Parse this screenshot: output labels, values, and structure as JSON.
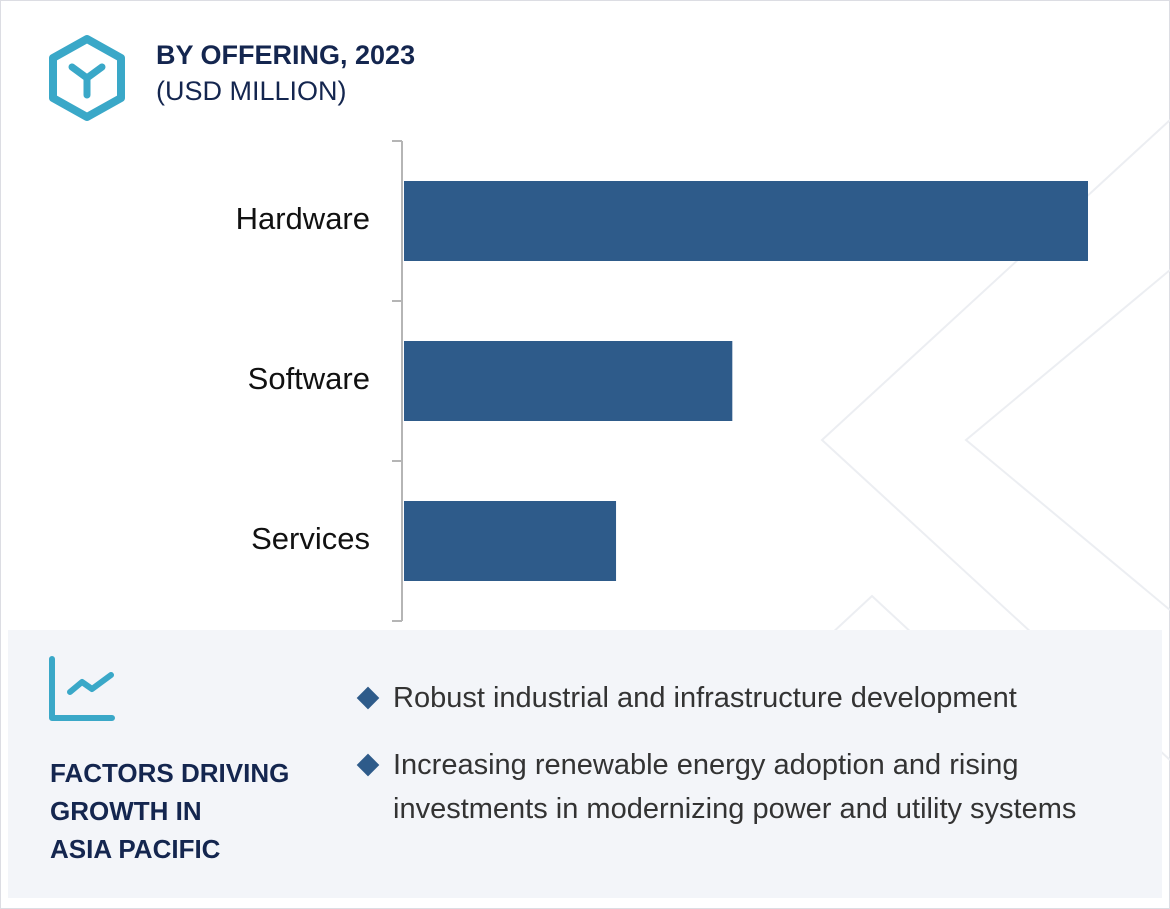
{
  "header": {
    "title": "BY OFFERING, 2023",
    "subtitle": "(USD MILLION)",
    "icon": "hexagon-y-icon"
  },
  "chart_data": {
    "type": "bar",
    "orientation": "horizontal",
    "title": "BY OFFERING, 2023 (USD MILLION)",
    "categories": [
      "Hardware",
      "Software",
      "Services"
    ],
    "values": [
      100,
      48,
      31
    ],
    "value_note": "relative bar lengths; no axis values printed",
    "xlabel": "",
    "ylabel": "",
    "xlim": [
      0,
      100
    ],
    "grid": false,
    "color": "#2e5b8a"
  },
  "factors": {
    "icon": "trend-chart-icon",
    "heading_lines": [
      "FACTORS DRIVING",
      "GROWTH IN",
      "ASIA PACIFIC"
    ],
    "bullets": [
      "Robust industrial and infrastructure development",
      "Increasing renewable energy adoption and rising investments in modernizing power and utility systems"
    ]
  },
  "colors": {
    "accent": "#3aa8c8",
    "bar": "#2e5b8a",
    "heading": "#14264f",
    "panel": "#f3f5f9"
  }
}
